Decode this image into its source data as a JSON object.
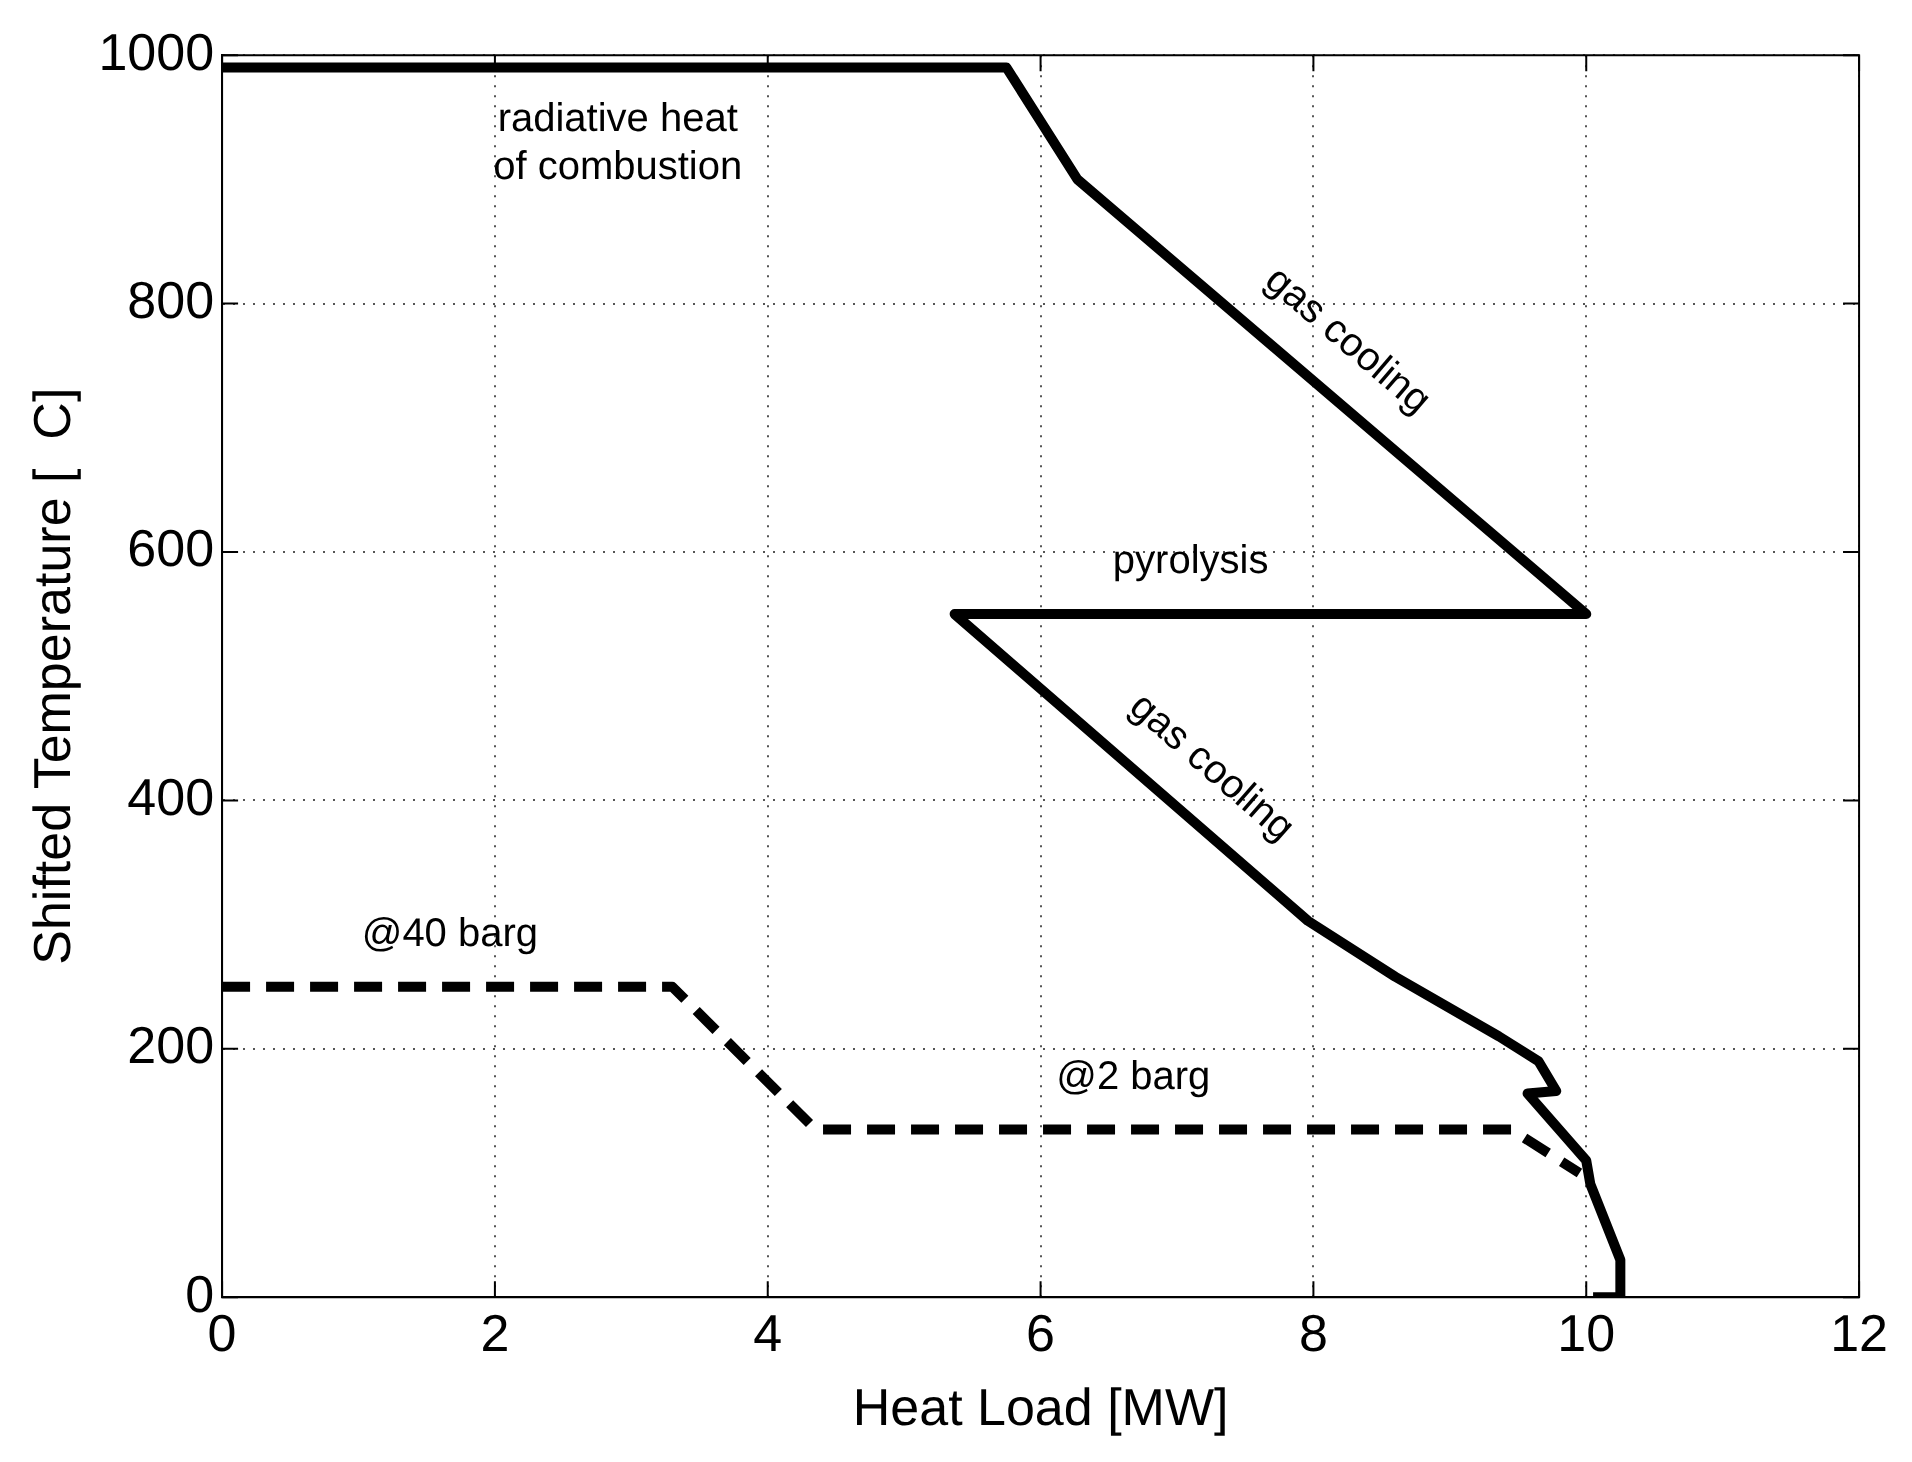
{
  "chart_data": {
    "type": "line",
    "xlabel": "Heat Load [MW]",
    "ylabel": "Shifted Temperature [  C]",
    "xlim": [
      0,
      12
    ],
    "xticks": [
      0,
      2,
      4,
      6,
      8,
      10,
      12
    ],
    "ylim": [
      0,
      1000
    ],
    "yticks": [
      0,
      200,
      400,
      600,
      800,
      1000
    ],
    "grid": true,
    "legend": false,
    "marker": "none",
    "series": [
      {
        "color": "#000000",
        "line_style": "solid",
        "x": [
          0,
          5.75,
          6.27,
          10,
          5.37,
          7.96,
          8.6,
          9.36,
          9.65,
          9.78,
          9.57,
          10.0,
          10.03,
          10.25,
          10.25,
          10.05
        ],
        "values": [
          990,
          990,
          900,
          550,
          550,
          303,
          258,
          210,
          190,
          166,
          164,
          110,
          91,
          30,
          0,
          0
        ]
      },
      {
        "color": "#000000",
        "line_style": "dashed",
        "x": [
          0,
          3.3,
          4.35,
          9.45,
          9.95
        ],
        "values": [
          250,
          250,
          135,
          135,
          100
        ]
      }
    ],
    "annotations": [
      {
        "text": "radiative heat\nof combustion",
        "x": 2.9,
        "y": 990
      },
      {
        "text": "gas cooling",
        "x": 8.0,
        "y": 738
      },
      {
        "text": "pyrolysis",
        "x": 7.1,
        "y": 550
      },
      {
        "text": "gas cooling",
        "x": 7.0,
        "y": 394.5
      },
      {
        "text": "@40 barg",
        "x": 1.67,
        "y": 250
      },
      {
        "text": "@2 barg",
        "x": 6.68,
        "y": 135
      }
    ]
  }
}
